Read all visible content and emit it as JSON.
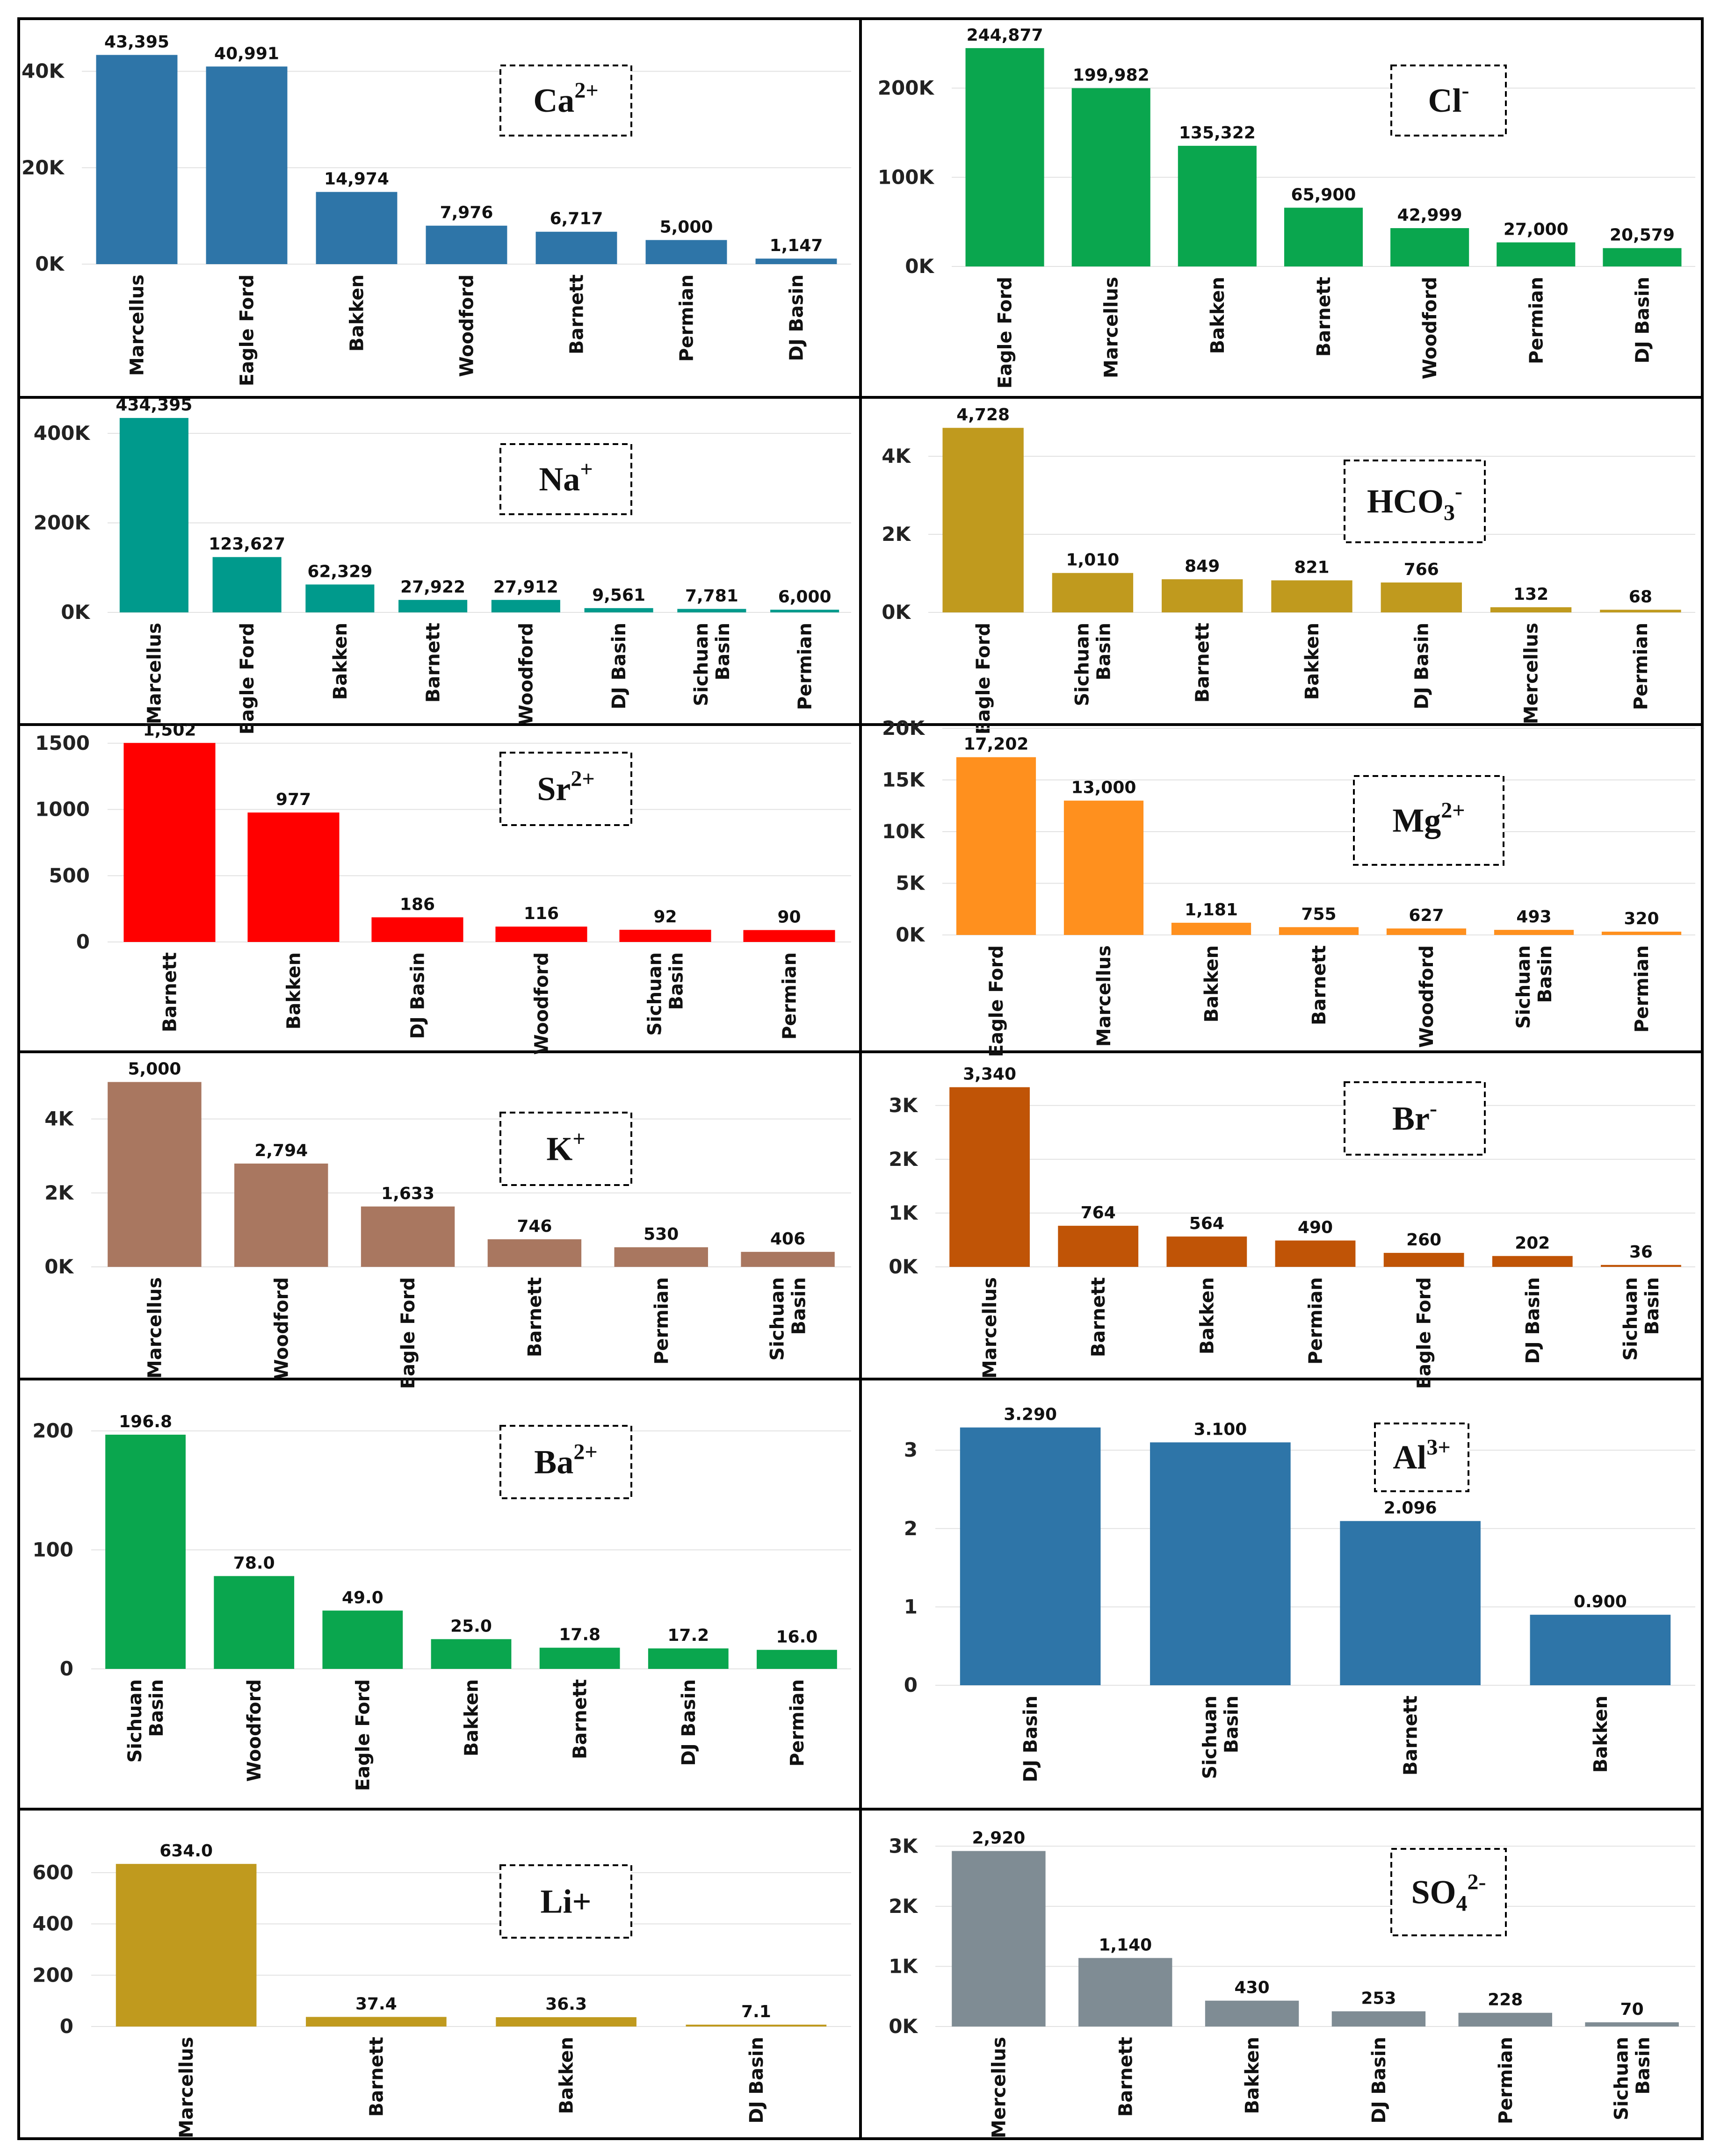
{
  "chart_data": [
    {
      "type": "bar",
      "ion": {
        "base": "Ca",
        "sup": "2+",
        "sub": ""
      },
      "color": "#2e75a8",
      "categories": [
        [
          "Marcellus"
        ],
        [
          "Eagle Ford"
        ],
        [
          "Bakken"
        ],
        [
          "Woodford"
        ],
        [
          "Barnett"
        ],
        [
          "Permian"
        ],
        [
          "DJ Basin"
        ]
      ],
      "values": [
        43395,
        40991,
        14974,
        7976,
        6717,
        5000,
        1147
      ],
      "labels": [
        "43,395",
        "40,991",
        "14,974",
        "7,976",
        "6,717",
        "5,000",
        "1,147"
      ],
      "yticks": [
        {
          "v": 0,
          "t": "0K"
        },
        {
          "v": 20000,
          "t": "20K"
        },
        {
          "v": 40000,
          "t": "40K"
        }
      ],
      "ymax": 48000,
      "grid": true
    },
    {
      "type": "bar",
      "ion": {
        "base": "Cl",
        "sup": "-",
        "sub": ""
      },
      "color": "#0aa64e",
      "categories": [
        [
          "Eagle Ford"
        ],
        [
          "Marcellus"
        ],
        [
          "Bakken"
        ],
        [
          "Barnett"
        ],
        [
          "Woodford"
        ],
        [
          "Permian"
        ],
        [
          "DJ Basin"
        ]
      ],
      "values": [
        244877,
        199982,
        135322,
        65900,
        42999,
        27000,
        20579
      ],
      "labels": [
        "244,877",
        "199,982",
        "135,322",
        "65,900",
        "42,999",
        "27,000",
        "20,579"
      ],
      "yticks": [
        {
          "v": 0,
          "t": "0K"
        },
        {
          "v": 100000,
          "t": "100K"
        },
        {
          "v": 200000,
          "t": "200K"
        }
      ],
      "ymax": 270000,
      "grid": true
    },
    {
      "type": "bar",
      "ion": {
        "base": "Na",
        "sup": "+",
        "sub": ""
      },
      "color": "#009a8c",
      "categories": [
        [
          "Marcellus"
        ],
        [
          "Eagle Ford"
        ],
        [
          "Bakken"
        ],
        [
          "Barnett"
        ],
        [
          "Woodford"
        ],
        [
          "DJ Basin"
        ],
        [
          "Sichuan",
          "Basin"
        ],
        [
          "Permian"
        ]
      ],
      "values": [
        434395,
        123627,
        62329,
        27922,
        27912,
        9561,
        7781,
        6000
      ],
      "labels": [
        "434,395",
        "123,627",
        "62,329",
        "27,922",
        "27,912",
        "9,561",
        "7,781",
        "6,000"
      ],
      "yticks": [
        {
          "v": 0,
          "t": "0K"
        },
        {
          "v": 200000,
          "t": "200K"
        },
        {
          "v": 400000,
          "t": "400K"
        }
      ],
      "ymax": 470000,
      "grid": true
    },
    {
      "type": "bar",
      "ion": {
        "base": "HCO",
        "sup": "-",
        "sub": "3"
      },
      "color": "#c09a1e",
      "categories": [
        [
          "Eagle Ford"
        ],
        [
          "Sichuan",
          "Basin"
        ],
        [
          "Barnett"
        ],
        [
          "Bakken"
        ],
        [
          "DJ Basin"
        ],
        [
          "Mercellus"
        ],
        [
          "Permian"
        ]
      ],
      "values": [
        4728,
        1010,
        849,
        821,
        766,
        132,
        68
      ],
      "labels": [
        "4,728",
        "1,010",
        "849",
        "821",
        "766",
        "132",
        "68"
      ],
      "yticks": [
        {
          "v": 0,
          "t": "0K"
        },
        {
          "v": 2000,
          "t": "2K"
        },
        {
          "v": 4000,
          "t": "4K"
        }
      ],
      "ymax": 5150,
      "grid": true
    },
    {
      "type": "bar",
      "ion": {
        "base": "Sr",
        "sup": "2+",
        "sub": ""
      },
      "color": "#ff0000",
      "categories": [
        [
          "Barnett"
        ],
        [
          "Bakken"
        ],
        [
          "DJ Basin"
        ],
        [
          "Woodford"
        ],
        [
          "Sichuan",
          "Basin"
        ],
        [
          "Permian"
        ]
      ],
      "values": [
        1502,
        977,
        186,
        116,
        92,
        90
      ],
      "labels": [
        "1,502",
        "977",
        "186",
        "116",
        "92",
        "90"
      ],
      "yticks": [
        {
          "v": 0,
          "t": "0"
        },
        {
          "v": 500,
          "t": "500"
        },
        {
          "v": 1000,
          "t": "1000"
        },
        {
          "v": 1500,
          "t": "1500"
        }
      ],
      "ymax": 1570,
      "grid": true
    },
    {
      "type": "bar",
      "ion": {
        "base": "Mg",
        "sup": "2+",
        "sub": ""
      },
      "color": "#ff901e",
      "categories": [
        [
          "Eagle Ford"
        ],
        [
          "Marcellus"
        ],
        [
          "Bakken"
        ],
        [
          "Barnett"
        ],
        [
          "Woodford"
        ],
        [
          "Sichuan",
          "Basin"
        ],
        [
          "Permian"
        ]
      ],
      "values": [
        17202,
        13000,
        1181,
        755,
        627,
        493,
        320
      ],
      "labels": [
        "17,202",
        "13,000",
        "1,181",
        "755",
        "627",
        "493",
        "320"
      ],
      "yticks": [
        {
          "v": 0,
          "t": "0K"
        },
        {
          "v": 5000,
          "t": "5K"
        },
        {
          "v": 10000,
          "t": "10K"
        },
        {
          "v": 15000,
          "t": "15K"
        },
        {
          "v": 20000,
          "t": "20K"
        }
      ],
      "ymax": 19000,
      "grid": true
    },
    {
      "type": "bar",
      "ion": {
        "base": "K",
        "sup": "+",
        "sub": ""
      },
      "color": "#a97760",
      "categories": [
        [
          "Marcellus"
        ],
        [
          "Woodford"
        ],
        [
          "Eagle Ford"
        ],
        [
          "Barnett"
        ],
        [
          "Permian"
        ],
        [
          "Sichuan",
          "Basin"
        ]
      ],
      "values": [
        5000,
        2794,
        1633,
        746,
        530,
        406
      ],
      "labels": [
        "5,000",
        "2,794",
        "1,633",
        "746",
        "530",
        "406"
      ],
      "yticks": [
        {
          "v": 0,
          "t": "0K"
        },
        {
          "v": 2000,
          "t": "2K"
        },
        {
          "v": 4000,
          "t": "4K"
        }
      ],
      "ymax": 5500,
      "grid": true
    },
    {
      "type": "bar",
      "ion": {
        "base": "Br",
        "sup": "-",
        "sub": ""
      },
      "color": "#c05406",
      "categories": [
        [
          "Marcellus"
        ],
        [
          "Barnett"
        ],
        [
          "Bakken"
        ],
        [
          "Permian"
        ],
        [
          "Eagle Ford"
        ],
        [
          "DJ Basin"
        ],
        [
          "Sichuan",
          "Basin"
        ]
      ],
      "values": [
        3340,
        764,
        564,
        490,
        260,
        202,
        36
      ],
      "labels": [
        "3,340",
        "764",
        "564",
        "490",
        "260",
        "202",
        "36"
      ],
      "yticks": [
        {
          "v": 0,
          "t": "0K"
        },
        {
          "v": 1000,
          "t": "1K"
        },
        {
          "v": 2000,
          "t": "2K"
        },
        {
          "v": 3000,
          "t": "3K"
        }
      ],
      "ymax": 3650,
      "grid": true
    },
    {
      "type": "bar",
      "ion": {
        "base": "Ba",
        "sup": "2+",
        "sub": ""
      },
      "color": "#0aa64e",
      "categories": [
        [
          "Sichuan",
          "Basin"
        ],
        [
          "Woodford"
        ],
        [
          "Eagle Ford"
        ],
        [
          "Bakken"
        ],
        [
          "Barnett"
        ],
        [
          "DJ Basin"
        ],
        [
          "Permian"
        ]
      ],
      "values": [
        196.8,
        78.0,
        49.0,
        25.0,
        17.8,
        17.2,
        16.0
      ],
      "labels": [
        "196.8",
        "78.0",
        "49.0",
        "25.0",
        "17.8",
        "17.2",
        "16.0"
      ],
      "yticks": [
        {
          "v": 0,
          "t": "0"
        },
        {
          "v": 100,
          "t": "100"
        },
        {
          "v": 200,
          "t": "200"
        }
      ],
      "ymax": 218,
      "grid": true
    },
    {
      "type": "bar",
      "ion": {
        "base": "Al",
        "sup": "3+",
        "sub": ""
      },
      "color": "#2e75a8",
      "categories": [
        [
          "DJ Basin"
        ],
        [
          "Sichuan",
          "Basin"
        ],
        [
          "Barnett"
        ],
        [
          "Bakken"
        ]
      ],
      "values": [
        3.29,
        3.1,
        2.096,
        0.9
      ],
      "labels": [
        "3.290",
        "3.100",
        "2.096",
        "0.900"
      ],
      "yticks": [
        {
          "v": 0,
          "t": "0"
        },
        {
          "v": 1,
          "t": "1"
        },
        {
          "v": 2,
          "t": "2"
        },
        {
          "v": 3,
          "t": "3"
        }
      ],
      "ymax": 3.55,
      "grid": true
    },
    {
      "type": "bar",
      "ion": {
        "base": "Li+",
        "sup": "",
        "sub": ""
      },
      "color": "#c09a1e",
      "categories": [
        [
          "Marcellus"
        ],
        [
          "Barnett"
        ],
        [
          "Bakken"
        ],
        [
          "DJ Basin"
        ]
      ],
      "values": [
        634.0,
        37.4,
        36.3,
        7.1
      ],
      "labels": [
        "634.0",
        "37.4",
        "36.3",
        "7.1"
      ],
      "yticks": [
        {
          "v": 0,
          "t": "0"
        },
        {
          "v": 200,
          "t": "200"
        },
        {
          "v": 400,
          "t": "400"
        },
        {
          "v": 600,
          "t": "600"
        }
      ],
      "ymax": 720,
      "grid": true
    },
    {
      "type": "bar",
      "ion": {
        "base": "SO",
        "sup": "2-",
        "sub": "4"
      },
      "color": "#7f8c94",
      "categories": [
        [
          "Mercellus"
        ],
        [
          "Barnett"
        ],
        [
          "Bakken"
        ],
        [
          "DJ Basin"
        ],
        [
          "Permian"
        ],
        [
          "Sichuan",
          "Basin"
        ]
      ],
      "values": [
        2920,
        1140,
        430,
        253,
        228,
        70
      ],
      "labels": [
        "2,920",
        "1,140",
        "430",
        "253",
        "228",
        "70"
      ],
      "yticks": [
        {
          "v": 0,
          "t": "0K"
        },
        {
          "v": 1000,
          "t": "1K"
        },
        {
          "v": 2000,
          "t": "2K"
        },
        {
          "v": 3000,
          "t": "3K"
        }
      ],
      "ymax": 3150,
      "grid": true
    }
  ]
}
